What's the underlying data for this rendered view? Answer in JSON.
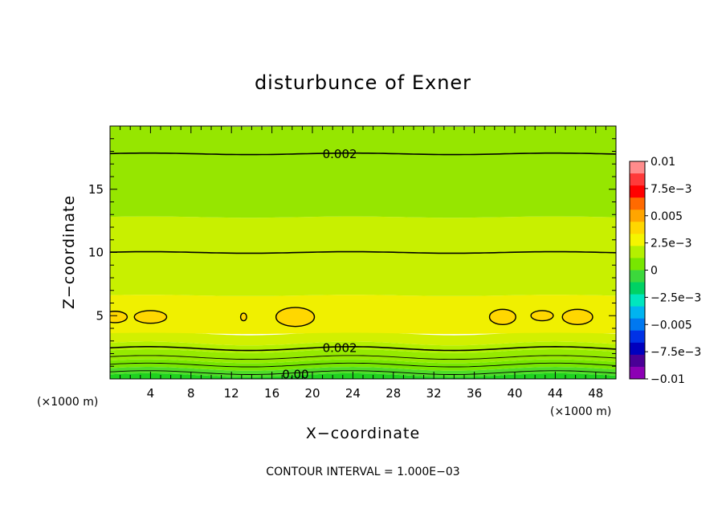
{
  "chart_data": {
    "type": "heatmap",
    "title": "disturbunce of Exner",
    "xlabel": "X−coordinate",
    "ylabel": "Z−coordinate",
    "xlim": [
      0,
      50
    ],
    "ylim": [
      0,
      20
    ],
    "x_unit": "(×1000 m)",
    "x_ticks": [
      4,
      8,
      12,
      16,
      20,
      24,
      28,
      32,
      36,
      40,
      44,
      48
    ],
    "y_ticks": [
      5,
      10,
      15
    ],
    "footer": "CONTOUR INTERVAL = 1.000E−03",
    "colorbar": {
      "labels": [
        "0.01",
        "7.5e−3",
        "0.005",
        "2.5e−3",
        "0",
        "−2.5e−3",
        "−0.005",
        "−7.5e−3",
        "−0.01"
      ],
      "colors": [
        "#ff8c8c",
        "#ff3a3a",
        "#ff0000",
        "#ff6a00",
        "#ffa500",
        "#ffd700",
        "#f5f500",
        "#b4f000",
        "#78e600",
        "#3cd83c",
        "#00d264",
        "#00e6be",
        "#00b4f0",
        "#0078f0",
        "#0032e6",
        "#0000be",
        "#4a0096",
        "#8c00b4"
      ]
    },
    "bands": [
      {
        "z_range": [
          0.0,
          0.3
        ],
        "value": 0.0005,
        "color": "#1ed21e"
      },
      {
        "z_range": [
          0.3,
          0.8
        ],
        "value": 0.0007,
        "color": "#50dc28"
      },
      {
        "z_range": [
          0.8,
          1.4
        ],
        "value": 0.0012,
        "color": "#78e600"
      },
      {
        "z_range": [
          1.4,
          2.2
        ],
        "value": 0.0017,
        "color": "#96ea00"
      },
      {
        "z_range": [
          2.2,
          2.8
        ],
        "value": 0.0021,
        "color": "#b4f000"
      },
      {
        "z_range": [
          2.8,
          3.6
        ],
        "value": 0.0026,
        "color": "#d2f000"
      },
      {
        "z_range": [
          3.6,
          6.6
        ],
        "value": 0.0032,
        "color": "#f0f000"
      },
      {
        "z_range": [
          6.6,
          12.8
        ],
        "value": 0.0027,
        "color": "#c8f000"
      },
      {
        "z_range": [
          12.8,
          20.0
        ],
        "value": 0.0022,
        "color": "#96e600"
      }
    ],
    "contours": [
      {
        "level": 0.002,
        "z": 17.8,
        "label": "0.002",
        "label_x": 21
      },
      {
        "level": 0.002,
        "z": 10.0,
        "label": "",
        "label_x": null
      },
      {
        "level": 0.002,
        "z": 2.4,
        "label": "0.002",
        "label_x": 21
      },
      {
        "level": 0.001,
        "z": 1.7,
        "label": "",
        "label_x": null
      },
      {
        "level": 0.001,
        "z": 1.1,
        "label": "",
        "label_x": null
      },
      {
        "level": 0.0,
        "z": 0.5,
        "label": "0.00",
        "label_x": 17
      }
    ],
    "cells": [
      {
        "x": 0.5,
        "z": 4.9,
        "rx": 1.2,
        "rz": 0.45
      },
      {
        "x": 4.0,
        "z": 4.9,
        "rx": 1.6,
        "rz": 0.5
      },
      {
        "x": 13.2,
        "z": 4.9,
        "rx": 0.3,
        "rz": 0.3
      },
      {
        "x": 18.3,
        "z": 4.9,
        "rx": 1.9,
        "rz": 0.75
      },
      {
        "x": 38.8,
        "z": 4.9,
        "rx": 1.3,
        "rz": 0.6
      },
      {
        "x": 42.7,
        "z": 5.0,
        "rx": 1.1,
        "rz": 0.4
      },
      {
        "x": 46.2,
        "z": 4.9,
        "rx": 1.5,
        "rz": 0.6
      }
    ]
  }
}
